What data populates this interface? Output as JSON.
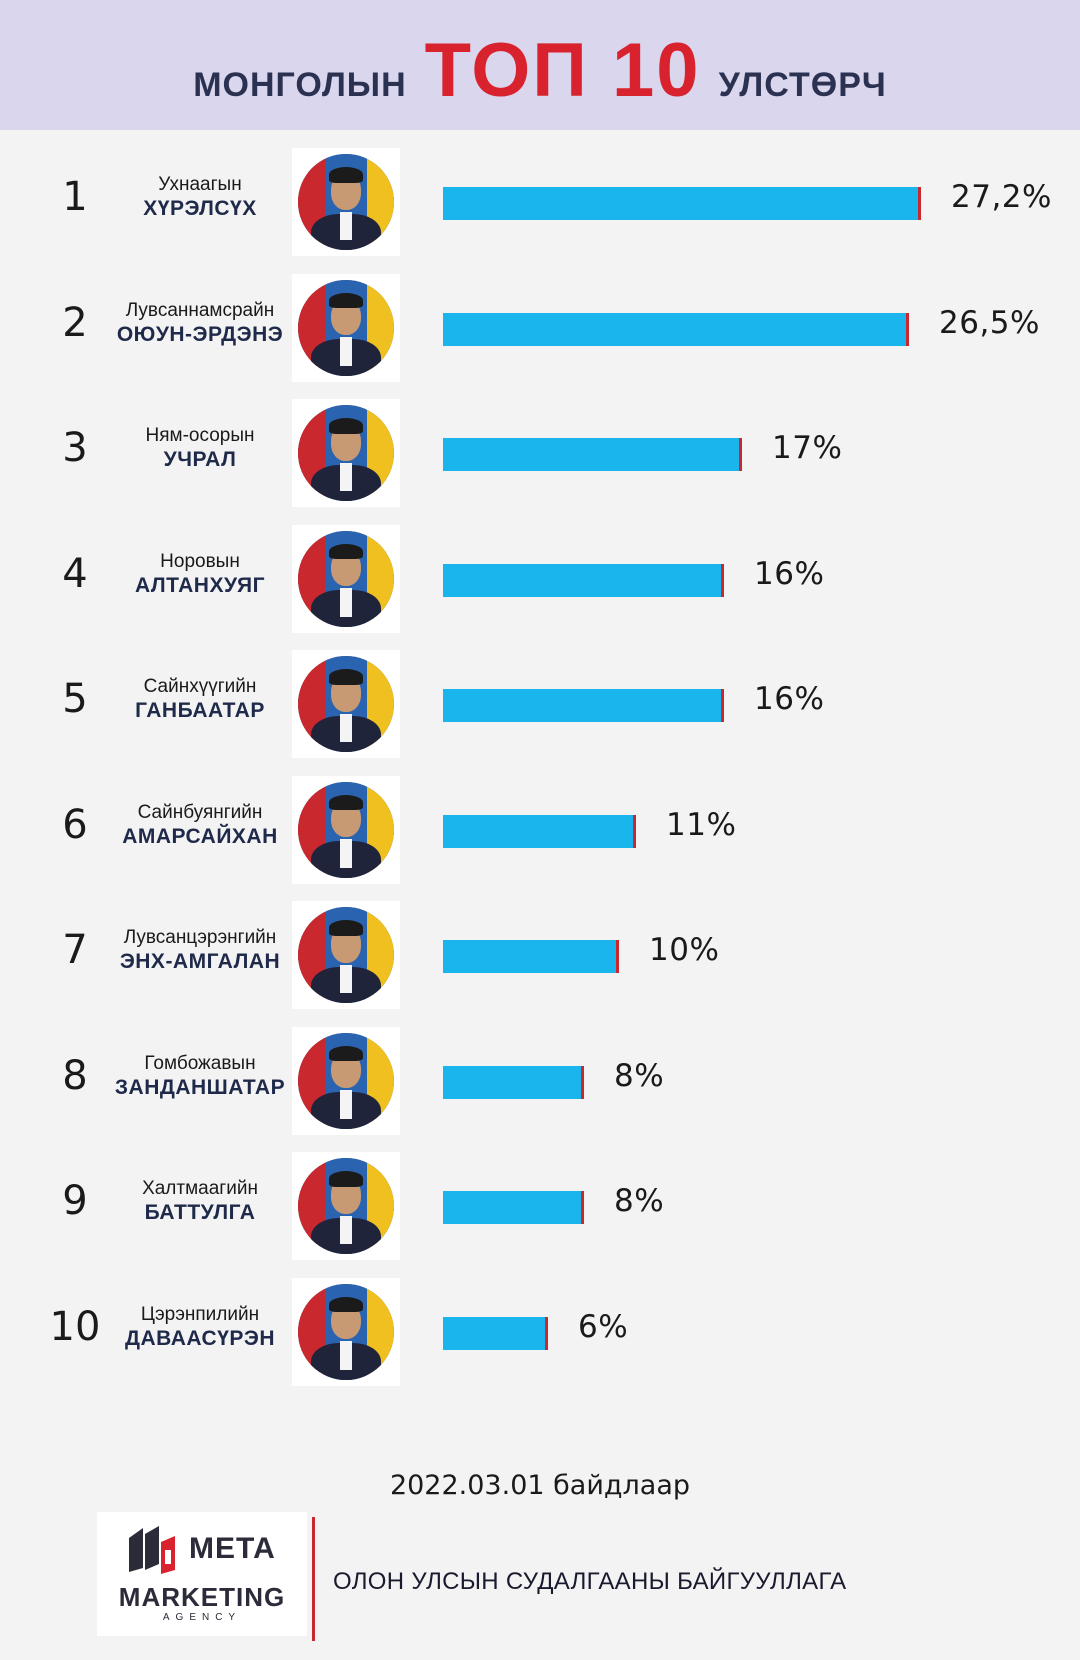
{
  "header": {
    "prefix": "монголын",
    "highlight": "ТОП 10",
    "suffix": "улстөрч"
  },
  "chart_data": {
    "type": "bar",
    "orientation": "horizontal",
    "title": "монголын ТОП 10 улстөрч",
    "xlim": [
      0,
      27.2
    ],
    "unit": "%",
    "categories": [
      "Ухнаагын ХҮРЭЛСҮХ",
      "Лувсаннамсрайн ОЮУН-ЭРДЭНЭ",
      "Нямосорын УЧРАЛ",
      "Норовын АЛТАНХУЯГ",
      "Сайнхүүгийн ГАНБААТАР",
      "Сайнбуянгийн АМАРСАЙХАН",
      "Лувсанцэрэнгийн ЭНХ-АМГАЛАН",
      "Гомбожавын ЗАНДАНШАТАР",
      "Халтмаагийн БАТТУЛГА",
      "Цэрэнпилийн ДАВААСҮРЭН"
    ],
    "values": [
      27.2,
      26.5,
      17,
      16,
      16,
      11,
      10,
      8,
      8,
      6
    ],
    "rows": [
      {
        "rank": "1",
        "first": "Ухнаагын",
        "last": "ХҮРЭЛСҮХ",
        "value": 27.2,
        "label": "27,2%"
      },
      {
        "rank": "2",
        "first": "Лувсаннамсрайн",
        "last": "ОЮУН-ЭРДЭНЭ",
        "value": 26.5,
        "label": "26,5%"
      },
      {
        "rank": "3",
        "first": "Ням-осорын",
        "last": "УЧРАЛ",
        "value": 17,
        "label": "17%"
      },
      {
        "rank": "4",
        "first": "Норовын",
        "last": "АЛТАНХУЯГ",
        "value": 16,
        "label": "16%"
      },
      {
        "rank": "5",
        "first": "Сайнхүүгийн",
        "last": "ГАНБААТАР",
        "value": 16,
        "label": "16%"
      },
      {
        "rank": "6",
        "first": "Сайнбуянгийн",
        "last": "АМАРСАЙХАН",
        "value": 11,
        "label": "11%"
      },
      {
        "rank": "7",
        "first": "Лувсанцэрэнгийн",
        "last": "ЭНХ-АМГАЛАН",
        "value": 10,
        "label": "10%"
      },
      {
        "rank": "8",
        "first": "Гомбожавын",
        "last": "ЗАНДАНШАТАР",
        "value": 8,
        "label": "8%"
      },
      {
        "rank": "9",
        "first": "Халтмаагийн",
        "last": "БАТТУЛГА",
        "value": 8,
        "label": "8%"
      },
      {
        "rank": "10",
        "first": "Цэрэнпилийн",
        "last": "ДАВААСҮРЭН",
        "value": 6,
        "label": "6%"
      }
    ]
  },
  "footer": {
    "date": "2022.03.01 байдлаар",
    "logo_meta": "META",
    "logo_marketing": "MARKETING",
    "logo_agency": "AGENCY",
    "organization": "ОЛОН УЛСЫН СУДАЛГААНЫ БАЙГУУЛЛАГА"
  },
  "colors": {
    "bar": "#19b5ec",
    "bar_edge": "#c8282e",
    "highlight": "#d8222d",
    "header_bg": "#dad6ee"
  }
}
